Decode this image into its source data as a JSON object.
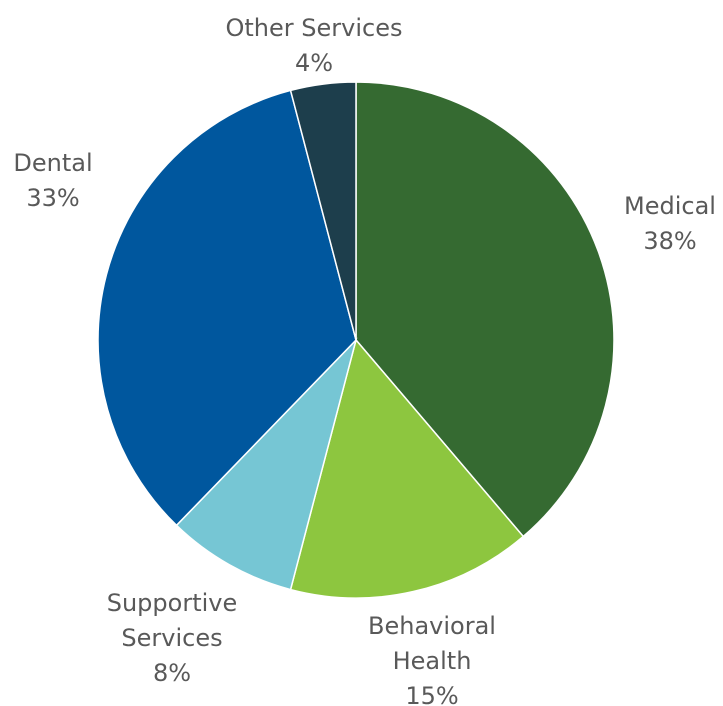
{
  "chart_data": {
    "type": "pie",
    "start_angle_deg": 0,
    "direction": "clockwise",
    "slices": [
      {
        "label_lines": [
          "Medical"
        ],
        "percent_label": "38%",
        "value": 38,
        "color": "#356a31"
      },
      {
        "label_lines": [
          "Behavioral",
          "Health"
        ],
        "percent_label": "15%",
        "value": 15,
        "color": "#8dc63f"
      },
      {
        "label_lines": [
          "Supportive",
          "Services"
        ],
        "percent_label": "8%",
        "value": 8,
        "color": "#76c6d4"
      },
      {
        "label_lines": [
          "Dental"
        ],
        "percent_label": "33%",
        "value": 33,
        "color": "#00579e"
      },
      {
        "label_lines": [
          "Other Services"
        ],
        "percent_label": "4%",
        "value": 4,
        "color": "#1d3e4c"
      }
    ]
  }
}
